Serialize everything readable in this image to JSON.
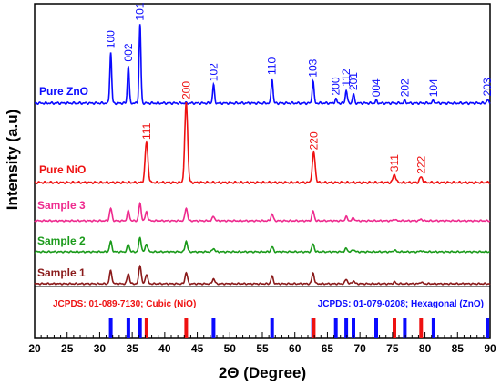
{
  "chart_data": {
    "type": "line",
    "xlabel": "2Θ (Degree)",
    "ylabel": "Intensity (a.u)",
    "xlim": [
      20,
      90
    ],
    "x_ticks": [
      "20",
      "25",
      "30",
      "35",
      "40",
      "45",
      "50",
      "55",
      "60",
      "65",
      "70",
      "75",
      "80",
      "85",
      "90"
    ],
    "y_ticks": "none",
    "grid": false,
    "series": [
      {
        "name": "Pure ZnO",
        "color": "#0a0aff",
        "peaks": [
          {
            "x": 31.7,
            "h": 0.62
          },
          {
            "x": 34.4,
            "h": 0.46
          },
          {
            "x": 36.2,
            "h": 0.96
          },
          {
            "x": 47.5,
            "h": 0.22
          },
          {
            "x": 56.5,
            "h": 0.3
          },
          {
            "x": 62.8,
            "h": 0.27
          },
          {
            "x": 66.3,
            "h": 0.05
          },
          {
            "x": 67.9,
            "h": 0.16
          },
          {
            "x": 69.0,
            "h": 0.11
          },
          {
            "x": 72.5,
            "h": 0.03
          },
          {
            "x": 76.9,
            "h": 0.03
          },
          {
            "x": 81.3,
            "h": 0.03
          },
          {
            "x": 89.6,
            "h": 0.04
          }
        ]
      },
      {
        "name": "Pure NiO",
        "color": "#ee1111",
        "peaks": [
          {
            "x": 37.2,
            "h": 0.5
          },
          {
            "x": 43.3,
            "h": 1.0
          },
          {
            "x": 62.9,
            "h": 0.37
          },
          {
            "x": 75.3,
            "h": 0.1
          },
          {
            "x": 79.4,
            "h": 0.07
          }
        ]
      },
      {
        "name": "Sample 3",
        "color": "#ee2a8e",
        "peaks": [
          {
            "x": 31.7,
            "h": 0.22
          },
          {
            "x": 34.4,
            "h": 0.17
          },
          {
            "x": 36.2,
            "h": 0.3
          },
          {
            "x": 37.2,
            "h": 0.16
          },
          {
            "x": 43.3,
            "h": 0.23
          },
          {
            "x": 47.5,
            "h": 0.08
          },
          {
            "x": 56.5,
            "h": 0.12
          },
          {
            "x": 62.8,
            "h": 0.17
          },
          {
            "x": 67.9,
            "h": 0.07
          },
          {
            "x": 69.0,
            "h": 0.05
          },
          {
            "x": 75.3,
            "h": 0.03
          },
          {
            "x": 79.4,
            "h": 0.03
          }
        ]
      },
      {
        "name": "Sample 2",
        "color": "#1a9a1a",
        "peaks": [
          {
            "x": 31.7,
            "h": 0.18
          },
          {
            "x": 34.4,
            "h": 0.13
          },
          {
            "x": 36.2,
            "h": 0.25
          },
          {
            "x": 37.2,
            "h": 0.14
          },
          {
            "x": 43.3,
            "h": 0.19
          },
          {
            "x": 47.5,
            "h": 0.06
          },
          {
            "x": 56.5,
            "h": 0.09
          },
          {
            "x": 62.8,
            "h": 0.14
          },
          {
            "x": 67.9,
            "h": 0.06
          },
          {
            "x": 69.0,
            "h": 0.04
          },
          {
            "x": 75.3,
            "h": 0.03
          },
          {
            "x": 79.4,
            "h": 0.02
          }
        ]
      },
      {
        "name": "Sample 1",
        "color": "#8a1a1a",
        "peaks": [
          {
            "x": 31.7,
            "h": 0.23
          },
          {
            "x": 34.4,
            "h": 0.18
          },
          {
            "x": 36.2,
            "h": 0.33
          },
          {
            "x": 37.2,
            "h": 0.17
          },
          {
            "x": 43.3,
            "h": 0.2
          },
          {
            "x": 47.5,
            "h": 0.09
          },
          {
            "x": 56.5,
            "h": 0.13
          },
          {
            "x": 62.8,
            "h": 0.19
          },
          {
            "x": 67.9,
            "h": 0.08
          },
          {
            "x": 69.0,
            "h": 0.05
          },
          {
            "x": 75.3,
            "h": 0.03
          },
          {
            "x": 79.4,
            "h": 0.03
          }
        ]
      }
    ],
    "peak_labels": {
      "zno": [
        {
          "text": "100",
          "x": 31.7
        },
        {
          "text": "002",
          "x": 34.4
        },
        {
          "text": "101",
          "x": 36.2
        },
        {
          "text": "102",
          "x": 47.5
        },
        {
          "text": "110",
          "x": 56.5
        },
        {
          "text": "103",
          "x": 62.8
        },
        {
          "text": "200",
          "x": 66.3
        },
        {
          "text": "112",
          "x": 67.9
        },
        {
          "text": "201",
          "x": 69.0
        },
        {
          "text": "004",
          "x": 72.5
        },
        {
          "text": "202",
          "x": 76.9
        },
        {
          "text": "104",
          "x": 81.3
        },
        {
          "text": "203",
          "x": 89.6
        }
      ],
      "nio": [
        {
          "text": "111",
          "x": 37.2
        },
        {
          "text": "200",
          "x": 43.3
        },
        {
          "text": "220",
          "x": 62.9
        },
        {
          "text": "311",
          "x": 75.3
        },
        {
          "text": "222",
          "x": 79.4
        }
      ]
    },
    "reference": {
      "nio_label": "JCPDS: 01-089-7130; Cubic (NiO)",
      "zno_label": "JCPDS: 01-079-0208; Hexagonal (ZnO)",
      "nio_color": "#ee1111",
      "zno_color": "#0a0aff",
      "nio_lines": [
        37.2,
        43.3,
        62.9,
        75.3,
        79.4
      ],
      "zno_lines": [
        31.7,
        34.4,
        36.2,
        47.5,
        56.5,
        62.8,
        66.3,
        67.9,
        69.0,
        72.5,
        76.9,
        81.3,
        89.6
      ]
    }
  }
}
